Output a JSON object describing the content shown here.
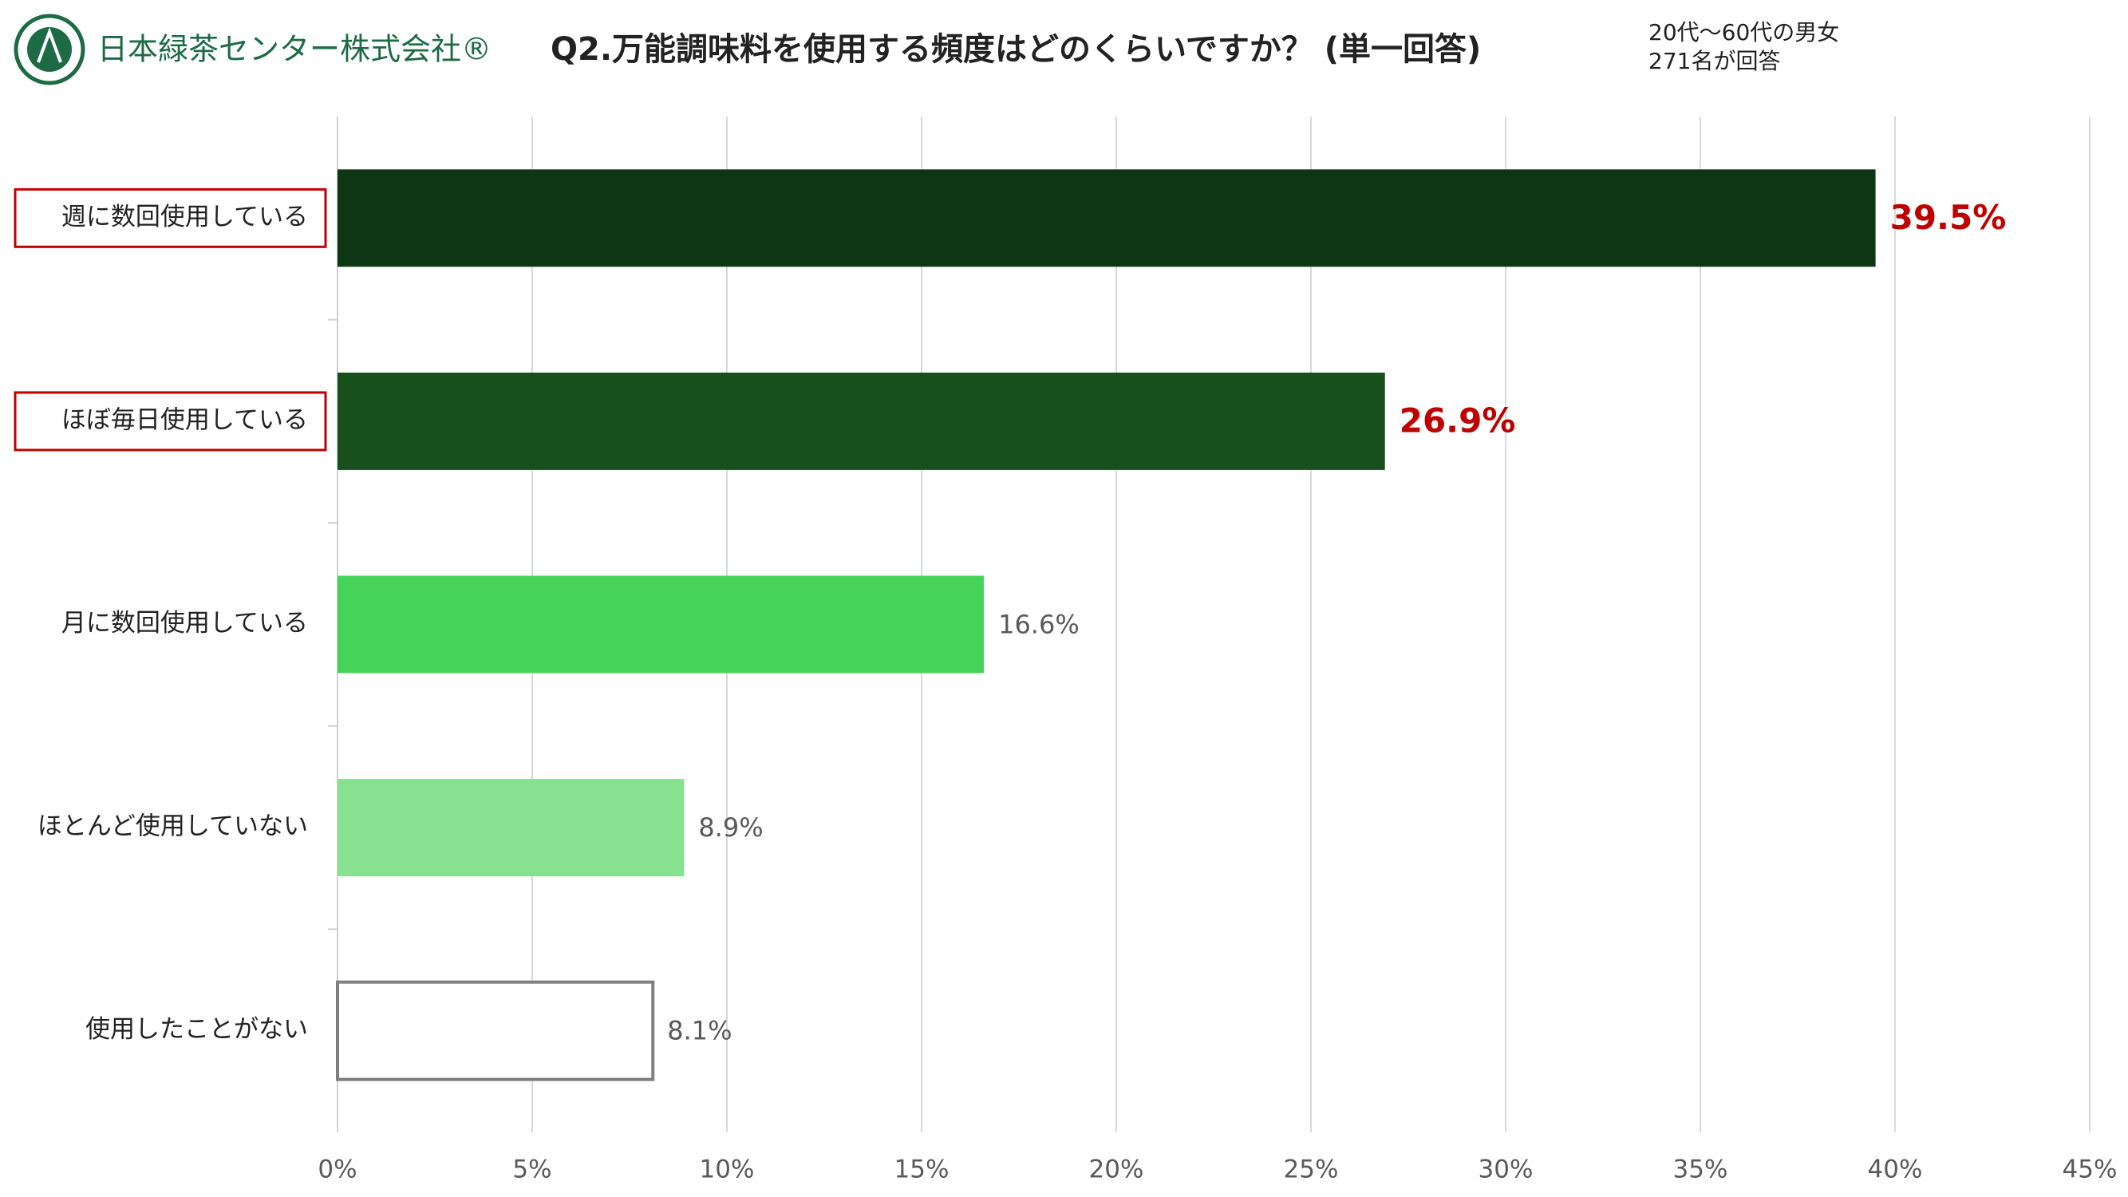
{
  "header": {
    "company": "日本緑茶センター株式会社®"
  },
  "chart_data": {
    "type": "bar",
    "orientation": "horizontal",
    "title": "Q2.万能調味料を使用する頻度はどのくらいですか？ (単一回答)",
    "notes": [
      "20代～60代の男女",
      "271名が回答"
    ],
    "categories": [
      "週に数回使用している",
      "ほぼ毎日使用している",
      "月に数回使用している",
      "ほとんど使用していない",
      "使用したことがない"
    ],
    "values": [
      39.5,
      26.9,
      16.6,
      8.9,
      8.1
    ],
    "value_labels": [
      "39.5%",
      "26.9%",
      "16.6%",
      "8.9%",
      "8.1%"
    ],
    "colors": [
      "#0f3614",
      "#17501d",
      "#45d35a",
      "#86e290",
      "#ffffff"
    ],
    "highlight": [
      true,
      true,
      false,
      false,
      false
    ],
    "xlim": [
      0,
      45
    ],
    "xticks": [
      {
        "value": 0,
        "label": "0%"
      },
      {
        "value": 5,
        "label": "5%"
      },
      {
        "value": 10,
        "label": "10%"
      },
      {
        "value": 15,
        "label": "15%"
      },
      {
        "value": 20,
        "label": "20%"
      },
      {
        "value": 25,
        "label": "25%"
      },
      {
        "value": 30,
        "label": "30%"
      },
      {
        "value": 35,
        "label": "35%"
      },
      {
        "value": 40,
        "label": "40%"
      },
      {
        "value": 45,
        "label": "45%"
      }
    ],
    "grid": true
  }
}
